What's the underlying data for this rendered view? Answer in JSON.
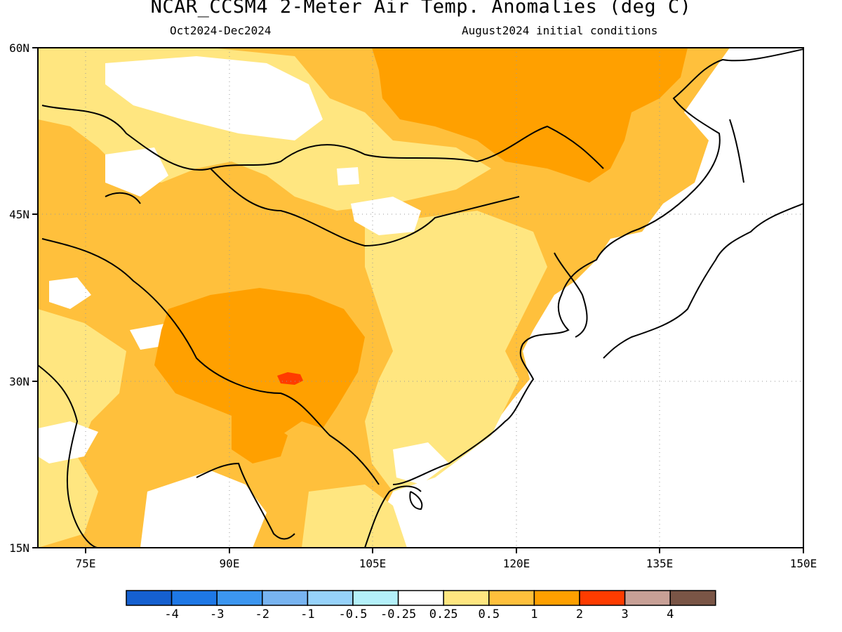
{
  "header": {
    "title": "NCAR_CCSM4 2-Meter Air Temp. Anomalies (deg C)",
    "period": "Oct2024-Dec2024",
    "init": "August2024 initial conditions"
  },
  "map": {
    "lon_range": [
      70,
      150
    ],
    "lat_range": [
      15,
      60
    ],
    "lon_ticks": [
      {
        "value": 75,
        "label": "75E"
      },
      {
        "value": 90,
        "label": "90E"
      },
      {
        "value": 105,
        "label": "105E"
      },
      {
        "value": 120,
        "label": "120E"
      },
      {
        "value": 135,
        "label": "135E"
      },
      {
        "value": 150,
        "label": "150E"
      }
    ],
    "lat_ticks": [
      {
        "value": 60,
        "label": "60N"
      },
      {
        "value": 45,
        "label": "45N"
      },
      {
        "value": 30,
        "label": "30N"
      },
      {
        "value": 15,
        "label": "15N"
      }
    ],
    "colors": {
      "c025": "#ffe680",
      "c05": "#ffc03c",
      "c1": "#ffa000",
      "c2": "#ff3c00",
      "white": "#ffffff"
    }
  },
  "colorbar": {
    "bins": [
      {
        "color": "#1560d0"
      },
      {
        "color": "#1e78e6"
      },
      {
        "color": "#3c96f0"
      },
      {
        "color": "#78b4f0"
      },
      {
        "color": "#96d2fa"
      },
      {
        "color": "#b4f0fa"
      },
      {
        "color": "#ffffff"
      },
      {
        "color": "#ffe680"
      },
      {
        "color": "#ffc03c"
      },
      {
        "color": "#ffa000"
      },
      {
        "color": "#ff3c00"
      },
      {
        "color": "#c8a096"
      },
      {
        "color": "#7a5546"
      }
    ],
    "labels": [
      "-4",
      "-3",
      "-2",
      "-1",
      "-0.5",
      "-0.25",
      "0.25",
      "0.5",
      "1",
      "2",
      "3",
      "4"
    ]
  }
}
